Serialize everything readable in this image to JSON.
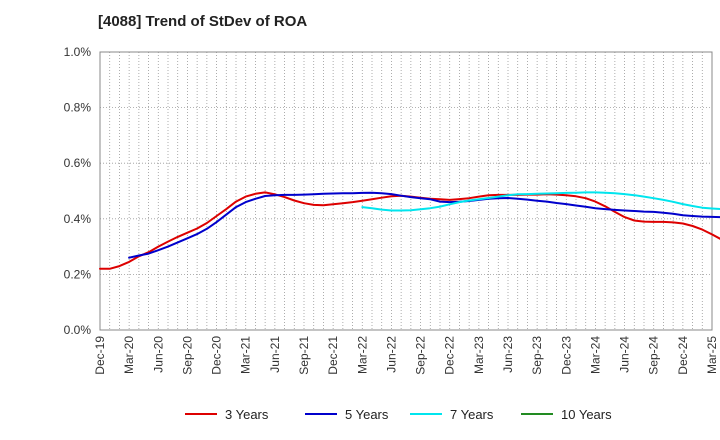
{
  "chart_data": {
    "type": "line",
    "title": "[4088]  Trend of StDev of ROA",
    "xlabel": "",
    "ylabel": "",
    "ylim": [
      0.0,
      1.0
    ],
    "y_ticks": [
      "0.0%",
      "0.2%",
      "0.4%",
      "0.6%",
      "0.8%",
      "1.0%"
    ],
    "y_tick_values": [
      0.0,
      0.2,
      0.4,
      0.6,
      0.8,
      1.0
    ],
    "x_ticks": [
      "Dec-19",
      "Mar-20",
      "Jun-20",
      "Sep-20",
      "Dec-20",
      "Mar-21",
      "Jun-21",
      "Sep-21",
      "Dec-21",
      "Mar-22",
      "Jun-22",
      "Sep-22",
      "Dec-22",
      "Mar-23",
      "Jun-23",
      "Sep-23",
      "Dec-23",
      "Mar-24",
      "Jun-24",
      "Sep-24",
      "Dec-24",
      "Mar-25"
    ],
    "grid": true,
    "legend_position": "bottom",
    "series": [
      {
        "name": "3 Years",
        "color": "#dd0000",
        "start_index": 0,
        "values": [
          0.22,
          0.22,
          0.23,
          0.245,
          0.265,
          0.28,
          0.3,
          0.318,
          0.335,
          0.35,
          0.365,
          0.385,
          0.41,
          0.435,
          0.462,
          0.48,
          0.49,
          0.495,
          0.488,
          0.478,
          0.466,
          0.456,
          0.45,
          0.449,
          0.452,
          0.456,
          0.46,
          0.465,
          0.47,
          0.476,
          0.481,
          0.483,
          0.48,
          0.476,
          0.472,
          0.47,
          0.468,
          0.471,
          0.474,
          0.48,
          0.485,
          0.486,
          0.486,
          0.486,
          0.487,
          0.487,
          0.488,
          0.487,
          0.485,
          0.481,
          0.474,
          0.462,
          0.445,
          0.425,
          0.406,
          0.394,
          0.39,
          0.389,
          0.389,
          0.387,
          0.383,
          0.374,
          0.361,
          0.344,
          0.325,
          0.305
        ]
      },
      {
        "name": "5 Years",
        "color": "#0000cc",
        "start_index": 3,
        "values": [
          0.26,
          0.268,
          0.275,
          0.287,
          0.3,
          0.315,
          0.33,
          0.345,
          0.364,
          0.388,
          0.415,
          0.442,
          0.46,
          0.472,
          0.482,
          0.485,
          0.486,
          0.486,
          0.487,
          0.488,
          0.49,
          0.491,
          0.492,
          0.492,
          0.493,
          0.494,
          0.492,
          0.489,
          0.483,
          0.478,
          0.474,
          0.47,
          0.462,
          0.46,
          0.461,
          0.464,
          0.468,
          0.472,
          0.474,
          0.475,
          0.472,
          0.469,
          0.465,
          0.462,
          0.457,
          0.453,
          0.448,
          0.443,
          0.438,
          0.435,
          0.432,
          0.43,
          0.428,
          0.426,
          0.425,
          0.422,
          0.418,
          0.413,
          0.41,
          0.408,
          0.407,
          0.406,
          0.403,
          0.398,
          0.395
        ]
      },
      {
        "name": "7 Years",
        "color": "#00e5ee",
        "start_index": 27,
        "values": [
          0.442,
          0.438,
          0.433,
          0.43,
          0.43,
          0.431,
          0.434,
          0.438,
          0.444,
          0.452,
          0.46,
          0.466,
          0.47,
          0.475,
          0.48,
          0.485,
          0.488,
          0.489,
          0.49,
          0.491,
          0.492,
          0.493,
          0.494,
          0.495,
          0.495,
          0.494,
          0.492,
          0.489,
          0.485,
          0.48,
          0.474,
          0.468,
          0.461,
          0.453,
          0.446,
          0.44,
          0.437,
          0.435,
          0.434
        ]
      },
      {
        "name": "10 Years",
        "color": "#228b22",
        "start_index": 0,
        "values": []
      }
    ]
  }
}
